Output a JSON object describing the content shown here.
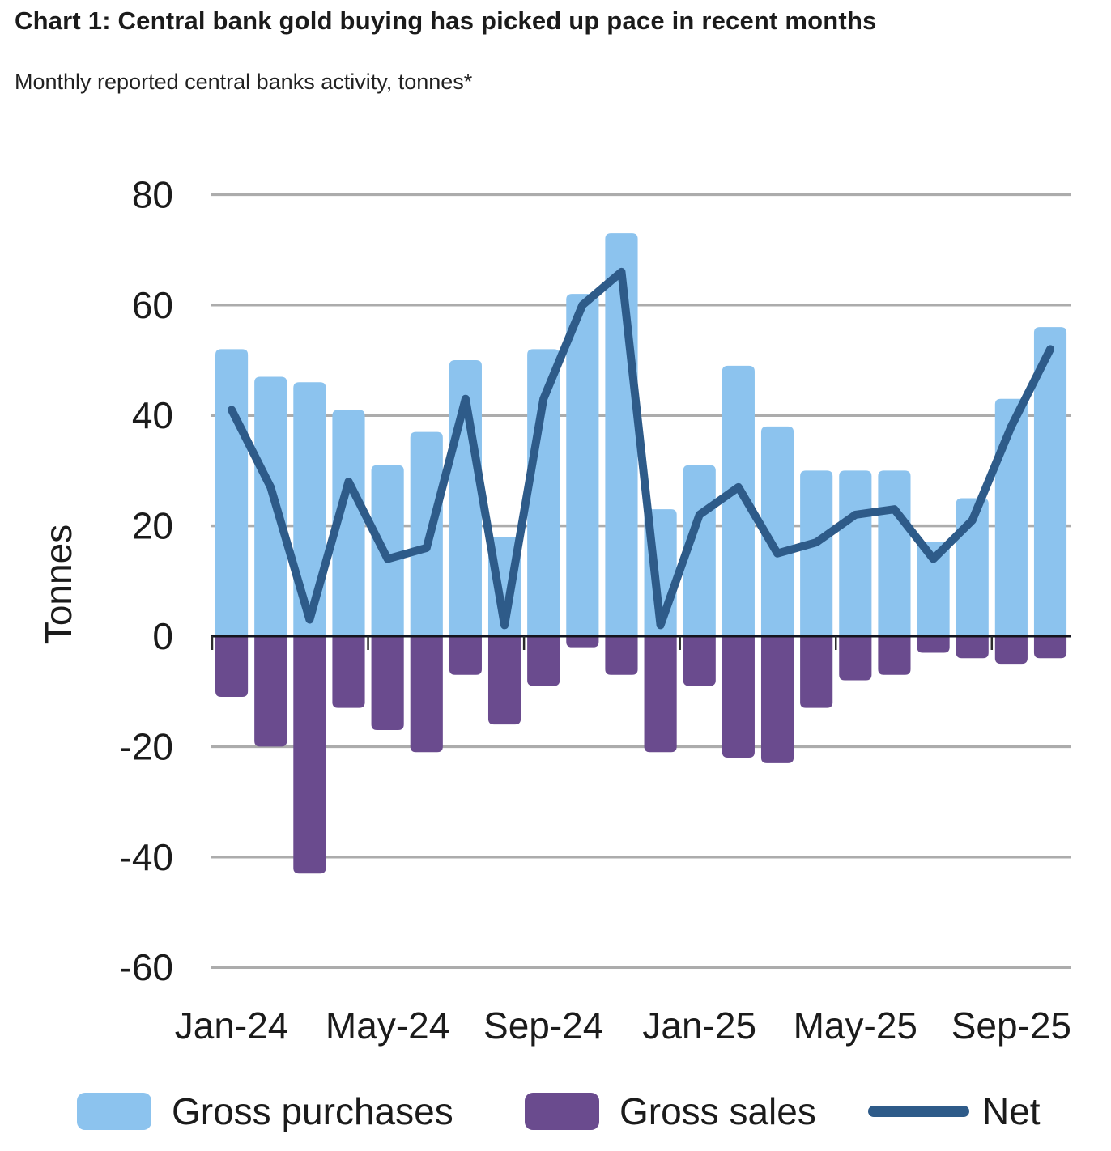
{
  "page": {
    "title": "Chart 1: Central bank gold buying has picked up pace in recent months",
    "subtitle": "Monthly reported central banks activity, tonnes*"
  },
  "chart_data": {
    "type": "bar",
    "subtype": "bar-and-line-combo",
    "unit": "tonnes",
    "title": "Chart 1: Central bank gold buying has picked up pace in recent months",
    "subtitle": "Monthly reported central banks activity, tonnes*",
    "ylabel": "Tonnes",
    "xlabel": "",
    "ylim": [
      -60,
      80
    ],
    "yticks": [
      80,
      60,
      40,
      20,
      0,
      -20,
      -40,
      -60
    ],
    "xtick_labels": [
      "Jan-24",
      "May-24",
      "Sep-24",
      "Jan-25",
      "May-25",
      "Sep-25"
    ],
    "xtick_every": 4,
    "grid": "horizontal",
    "legend_position": "bottom",
    "categories": [
      "Jan-24",
      "Feb-24",
      "Mar-24",
      "Apr-24",
      "May-24",
      "Jun-24",
      "Jul-24",
      "Aug-24",
      "Sep-24",
      "Oct-24",
      "Nov-24",
      "Dec-24",
      "Jan-25",
      "Feb-25",
      "Mar-25",
      "Apr-25",
      "May-25",
      "Jun-25",
      "Jul-25",
      "Aug-25",
      "Sep-25",
      "Oct-25"
    ],
    "series": [
      {
        "name": "Gross purchases",
        "type": "bar",
        "color": "#8CC3EE",
        "values": [
          52,
          47,
          46,
          41,
          31,
          37,
          50,
          18,
          52,
          62,
          73,
          23,
          31,
          49,
          38,
          30,
          30,
          30,
          17,
          25,
          43,
          56
        ]
      },
      {
        "name": "Gross sales",
        "type": "bar",
        "color": "#6A4B8E",
        "values": [
          -11,
          -20,
          -43,
          -13,
          -17,
          -21,
          -7,
          -16,
          -9,
          -2,
          -7,
          -21,
          -9,
          -22,
          -23,
          -13,
          -8,
          -7,
          -3,
          -4,
          -5,
          -4
        ]
      },
      {
        "name": "Net",
        "type": "line",
        "color": "#2E5B89",
        "values": [
          41,
          27,
          3,
          28,
          14,
          16,
          43,
          2,
          43,
          60,
          66,
          2,
          22,
          27,
          15,
          17,
          22,
          23,
          14,
          21,
          38,
          52
        ]
      }
    ],
    "colors": {
      "gridline": "#ACACAC",
      "zero_axis": "#15151f",
      "tick": "#2b2b2b",
      "text": "#1b1b1b",
      "background": "#ffffff"
    }
  }
}
